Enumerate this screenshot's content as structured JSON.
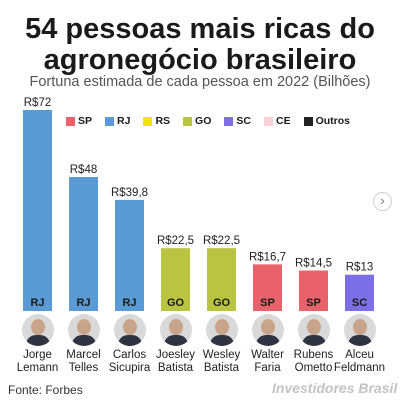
{
  "header": {
    "title_line1": "54 pessoas mais ricas do",
    "title_line2": "agronegócio brasileiro",
    "subtitle": "Fortuna estimada de cada pessoa em 2022 (Bilhões)"
  },
  "legend": [
    {
      "label": "SP",
      "color": "#e8616b"
    },
    {
      "label": "RJ",
      "color": "#5b9bd5"
    },
    {
      "label": "RS",
      "color": "#f2e600"
    },
    {
      "label": "GO",
      "color": "#b9c541"
    },
    {
      "label": "SC",
      "color": "#7b6ee6"
    },
    {
      "label": "CE",
      "color": "#f9d0d6"
    },
    {
      "label": "Outros",
      "color": "#222222"
    }
  ],
  "chart_data": {
    "type": "bar",
    "categories": [
      "Jorge Lemann",
      "Marcel Telles",
      "Carlos Sicupira",
      "Joesley Batista",
      "Wesley Batista",
      "Walter Faria",
      "Rubens Ometto",
      "Alceu Feldmann"
    ],
    "values": [
      72,
      48,
      39.8,
      22.5,
      22.5,
      16.7,
      14.5,
      13
    ],
    "value_labels": [
      "R$72",
      "R$48",
      "R$39,8",
      "R$22,5",
      "R$22,5",
      "R$16,7",
      "R$14,5",
      "R$13"
    ],
    "states": [
      "RJ",
      "RJ",
      "RJ",
      "GO",
      "GO",
      "SP",
      "SP",
      "SC"
    ],
    "colors": [
      "#5b9bd5",
      "#5b9bd5",
      "#5b9bd5",
      "#b9c541",
      "#b9c541",
      "#e8616b",
      "#e8616b",
      "#7b6ee6"
    ],
    "ylim": [
      0,
      72
    ],
    "grid": false,
    "legend_position": "top"
  },
  "people": [
    {
      "line1": "Jorge",
      "line2": "Lemann"
    },
    {
      "line1": "Marcel",
      "line2": "Telles"
    },
    {
      "line1": "Carlos",
      "line2": "Sicupira"
    },
    {
      "line1": "Joesley",
      "line2": "Batista"
    },
    {
      "line1": "Wesley",
      "line2": "Batista"
    },
    {
      "line1": "Walter",
      "line2": "Faria"
    },
    {
      "line1": "Rubens",
      "line2": "Ometto"
    },
    {
      "line1": "Alceu",
      "line2": "Feldmann"
    }
  ],
  "footer": {
    "source": "Fonte: Forbes",
    "brand": "Investidores Brasil"
  },
  "controls": {
    "next_icon": "chevron-right-icon",
    "next_glyph": "›"
  }
}
